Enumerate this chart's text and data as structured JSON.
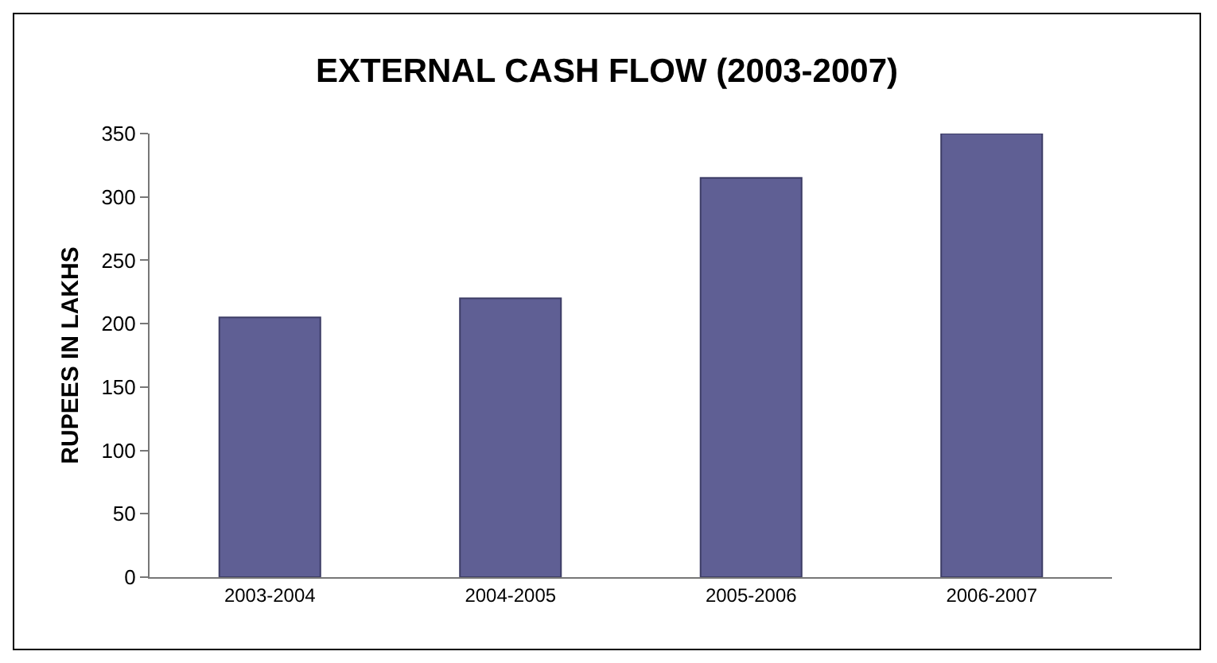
{
  "chart_data": {
    "type": "bar",
    "title": "EXTERNAL CASH FLOW (2003-2007)",
    "ylabel": "RUPEES IN LAKHS",
    "categories": [
      "2003-2004",
      "2004-2005",
      "2005-2006",
      "2006-2007"
    ],
    "values": [
      205,
      220,
      315,
      350
    ],
    "color": "#5f5f94",
    "ylim": [
      0,
      350
    ],
    "yticks": [
      0,
      50,
      100,
      150,
      200,
      250,
      300,
      350
    ],
    "grid": false
  }
}
